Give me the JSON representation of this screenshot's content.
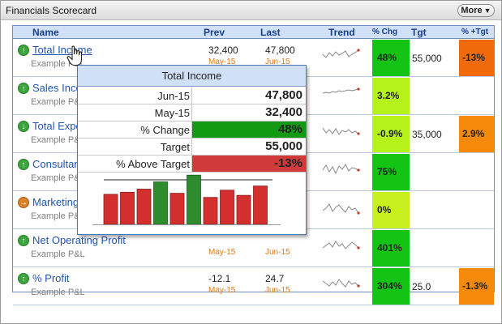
{
  "window": {
    "title": "Financials Scorecard",
    "more_label": "More"
  },
  "columns": {
    "name": "Name",
    "prev": "Prev",
    "last": "Last",
    "trend": "Trend",
    "pct_chg": "% Chg",
    "tgt": "Tgt",
    "pct_tgt": "% +Tgt"
  },
  "rows": [
    {
      "name": "Total Income",
      "sub": "Example P&L",
      "prev": "32,400",
      "prev_date": "May-15",
      "last": "47,800",
      "last_date": "Jun-15",
      "chg": "48%",
      "tgt": "55,000",
      "pct_tgt": "-13%",
      "icon": "up-arrow-icon"
    },
    {
      "name": "Sales Income",
      "sub": "Example P&L",
      "prev": "",
      "prev_date": "",
      "last": "",
      "last_date": "",
      "chg": "3.2%",
      "tgt": "",
      "pct_tgt": "",
      "icon": "up-arrow-icon"
    },
    {
      "name": "Total Expenses",
      "sub": "Example P&L",
      "prev": "",
      "prev_date": "",
      "last": "",
      "last_date": "",
      "chg": "-0.9%",
      "tgt": "35,000",
      "pct_tgt": "2.9%",
      "icon": "down-arrow-icon"
    },
    {
      "name": "Consultancy",
      "sub": "Example P&L",
      "prev": "",
      "prev_date": "",
      "last": "",
      "last_date": "",
      "chg": "75%",
      "tgt": "",
      "pct_tgt": "",
      "icon": "up-arrow-icon"
    },
    {
      "name": "Marketing",
      "sub": "Example P&L",
      "prev": "",
      "prev_date": "",
      "last": "",
      "last_date": "",
      "chg": "0%",
      "tgt": "",
      "pct_tgt": "",
      "icon": "right-arrow-icon"
    },
    {
      "name": "Net Operating Profit",
      "sub": "Example P&L",
      "prev": "",
      "prev_date": "May-15",
      "last": "",
      "last_date": "Jun-15",
      "chg": "401%",
      "tgt": "",
      "pct_tgt": "",
      "icon": "up-arrow-icon"
    },
    {
      "name": "% Profit",
      "sub": "Example P&L",
      "prev": "-12.1",
      "prev_date": "May-15",
      "last": "24.7",
      "last_date": "Jun-15",
      "chg": "304%",
      "tgt": "25.0",
      "pct_tgt": "-1.3%",
      "icon": "up-arrow-icon"
    }
  ],
  "colors": {
    "chg": [
      "#14c414",
      "#b5f21a",
      "#b5f21a",
      "#14c414",
      "#c8f01e",
      "#14c414",
      "#14c414"
    ],
    "pct_tgt": [
      "#f06a0a",
      "",
      "#f58a0a",
      "",
      "",
      "",
      "#f58a0a"
    ]
  },
  "popup": {
    "title": "Total Income",
    "rows": [
      {
        "label": "Jun-15",
        "value": "47,800"
      },
      {
        "label": "May-15",
        "value": "32,400"
      },
      {
        "label": "% Change",
        "value": "48%",
        "bar_color": "#129a12"
      },
      {
        "label": "Target",
        "value": "55,000"
      },
      {
        "label": "% Above Target",
        "value": "-13%",
        "bar_color": "#d03a3a"
      }
    ],
    "bars": [
      0.58,
      0.62,
      0.68,
      0.82,
      0.6,
      0.95,
      0.52,
      0.66,
      0.56,
      0.74
    ],
    "bar_colors": [
      "red",
      "red",
      "red",
      "green",
      "red",
      "green",
      "red",
      "red",
      "red",
      "red"
    ],
    "target_level": 0.86
  }
}
